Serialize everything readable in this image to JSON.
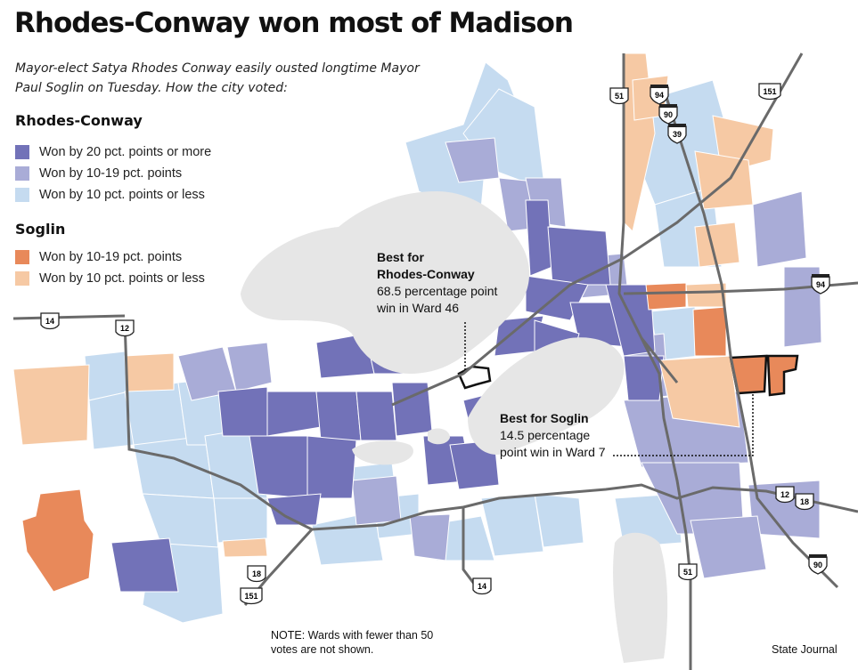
{
  "title": "Rhodes-Conway won most of Madison",
  "subtitle": "Mayor-elect Satya Rhodes Conway easily ousted longtime Mayor Paul Soglin on Tuesday. How the city voted:",
  "legend": {
    "groups": [
      {
        "heading": "Rhodes-Conway",
        "items": [
          {
            "label": "Won by 20 pct. points or more",
            "color": "#7272b8"
          },
          {
            "label": "Won by 10-19 pct. points",
            "color": "#a9acd7"
          },
          {
            "label": "Won by 10 pct. points or less",
            "color": "#c5dbf0"
          }
        ]
      },
      {
        "heading": "Soglin",
        "items": [
          {
            "label": "Won by 10-19 pct. points",
            "color": "#e8895a"
          },
          {
            "label": "Won by 10 pct. points or less",
            "color": "#f6c9a4"
          }
        ]
      }
    ]
  },
  "callouts": {
    "rhodes": {
      "heading_line1": "Best for",
      "heading_line2": "Rhodes-Conway",
      "line1": "68.5 percentage point",
      "line2": "win in Ward 46"
    },
    "soglin": {
      "heading": "Best for Soglin",
      "line1": "14.5 percentage",
      "line2": "point win in Ward 7"
    }
  },
  "highways": [
    {
      "label": "14",
      "kind": "us"
    },
    {
      "label": "12",
      "kind": "us"
    },
    {
      "label": "51",
      "kind": "us"
    },
    {
      "label": "94",
      "kind": "interstate"
    },
    {
      "label": "90",
      "kind": "interstate"
    },
    {
      "label": "39",
      "kind": "interstate"
    },
    {
      "label": "151",
      "kind": "us"
    },
    {
      "label": "94",
      "kind": "interstate"
    },
    {
      "label": "12",
      "kind": "us"
    },
    {
      "label": "18",
      "kind": "us"
    },
    {
      "label": "90",
      "kind": "interstate"
    },
    {
      "label": "51",
      "kind": "us"
    },
    {
      "label": "14",
      "kind": "us"
    },
    {
      "label": "18",
      "kind": "us"
    },
    {
      "label": "151",
      "kind": "us"
    }
  ],
  "note": "NOTE: Wards with fewer than 50 votes are not shown.",
  "credit": "State Journal",
  "colors": {
    "lake": "#e6e6e6",
    "road": "#6a6a6a",
    "highlight_outline": "#111111"
  }
}
